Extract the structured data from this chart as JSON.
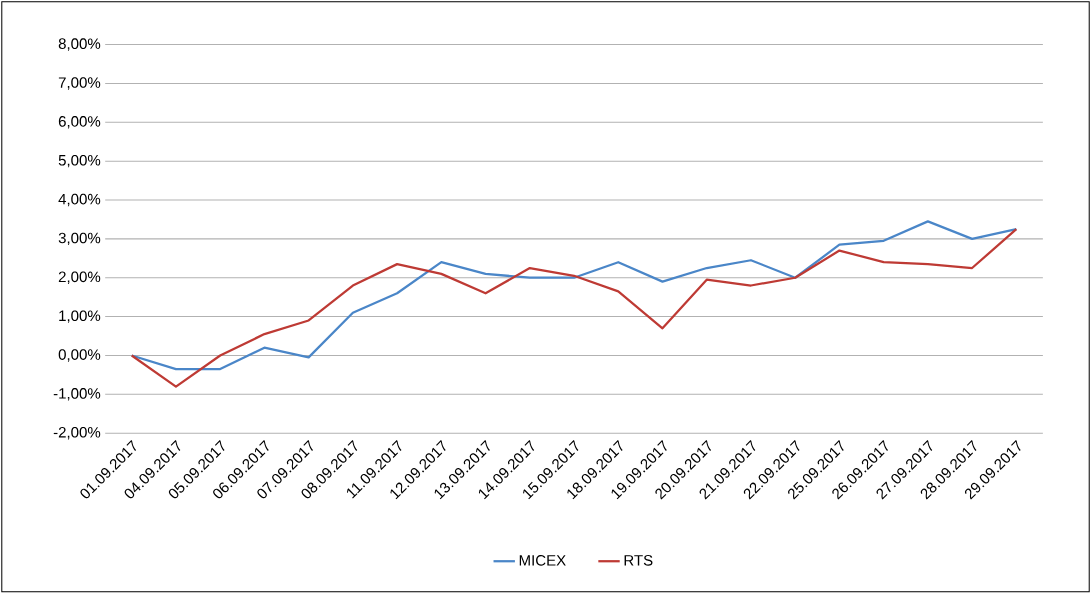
{
  "chart_data": {
    "type": "line",
    "categories": [
      "01.09.2017",
      "04.09.2017",
      "05.09.2017",
      "06.09.2017",
      "07.09.2017",
      "08.09.2017",
      "11.09.2017",
      "12.09.2017",
      "13.09.2017",
      "14.09.2017",
      "15.09.2017",
      "18.09.2017",
      "19.09.2017",
      "20.09.2017",
      "21.09.2017",
      "22.09.2017",
      "25.09.2017",
      "26.09.2017",
      "27.09.2017",
      "28.09.2017",
      "29.09.2017"
    ],
    "series": [
      {
        "name": "MICEX",
        "color": "#4a86c8",
        "values": [
          0,
          -0.35,
          -0.35,
          0.2,
          -0.05,
          1.1,
          1.6,
          2.4,
          2.1,
          2.0,
          2.0,
          2.4,
          1.9,
          2.25,
          2.45,
          2.0,
          2.85,
          2.95,
          3.45,
          3.0,
          3.25
        ]
      },
      {
        "name": "RTS",
        "color": "#be3a34",
        "values": [
          0,
          -0.8,
          0.0,
          0.55,
          0.9,
          1.8,
          2.35,
          2.1,
          1.6,
          2.25,
          2.05,
          1.65,
          0.7,
          1.95,
          1.8,
          2.0,
          2.7,
          2.4,
          2.35,
          2.25,
          3.25
        ]
      }
    ],
    "ylim": [
      -2,
      8
    ],
    "yticks": [
      {
        "value": -2,
        "label": "-2,00%"
      },
      {
        "value": -1,
        "label": "-1,00%"
      },
      {
        "value": 0,
        "label": "0,00%"
      },
      {
        "value": 1,
        "label": "1,00%"
      },
      {
        "value": 2,
        "label": "2,00%"
      },
      {
        "value": 3,
        "label": "3,00%"
      },
      {
        "value": 4,
        "label": "4,00%"
      },
      {
        "value": 5,
        "label": "5,00%"
      },
      {
        "value": 6,
        "label": "6,00%"
      },
      {
        "value": 7,
        "label": "7,00%"
      },
      {
        "value": 8,
        "label": "8,00%"
      }
    ],
    "grid": "y",
    "legend": "bottom",
    "marker": "none"
  }
}
